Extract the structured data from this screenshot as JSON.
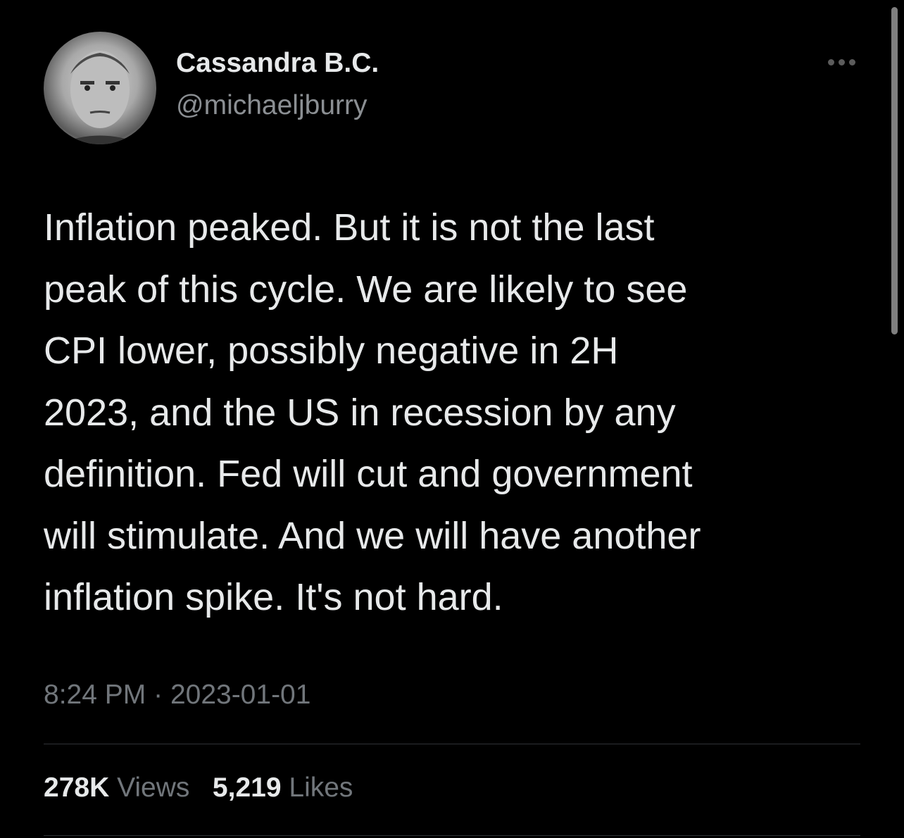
{
  "tweet": {
    "author": {
      "name": "Cassandra B.C.",
      "handle": "@michaeljburry"
    },
    "menu_icon": "more-dots-icon",
    "body_lines": [
      "Inflation peaked. But it is not the last",
      "peak of this cycle. We are likely to see",
      "CPI lower, possibly negative in 2H",
      "2023, and the US in recession by any",
      "definition. Fed will cut and government",
      "will stimulate. And we will have another",
      "inflation spike. It's not hard."
    ],
    "time": "8:24 PM",
    "separator": "·",
    "date": "2023-01-01",
    "stats": {
      "views_count": "278K",
      "views_label": "Views",
      "likes_count": "5,219",
      "likes_label": "Likes"
    }
  },
  "colors": {
    "background": "#000000",
    "text": "#e7e9ea",
    "secondary": "#71767b"
  }
}
